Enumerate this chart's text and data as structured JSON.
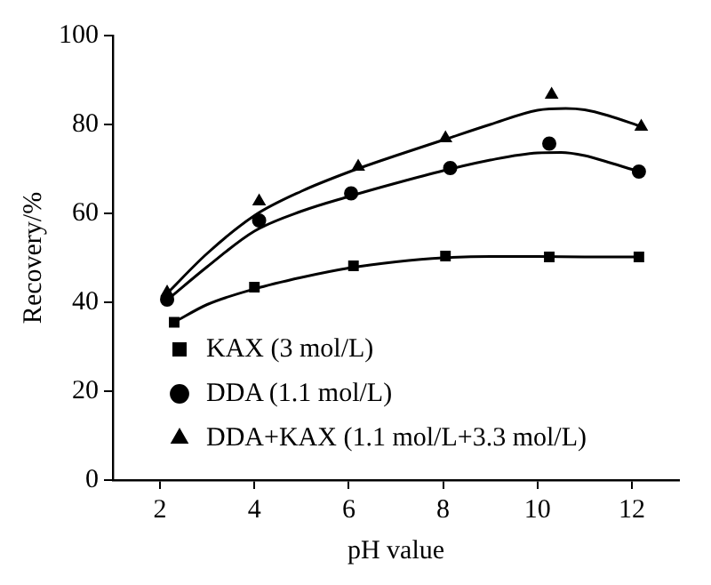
{
  "chart_data": {
    "type": "scatter",
    "xlabel": "pH value",
    "ylabel": "Recovery/%",
    "xlim": [
      1,
      13
    ],
    "xticks": [
      2,
      4,
      6,
      8,
      10,
      12
    ],
    "ylim": [
      0,
      100
    ],
    "yticks": [
      0,
      20,
      40,
      60,
      80,
      100
    ],
    "grid": false,
    "legend": "bottom left",
    "series": [
      {
        "name": "KAX (3 mol/L)",
        "color": "#000000",
        "marker": "square",
        "x": [
          2.3,
          4.0,
          6.1,
          8.05,
          10.25,
          12.15
        ],
        "values": [
          35.5,
          43.4,
          48.2,
          50.4,
          50.2,
          50.2
        ]
      },
      {
        "name": "DDA (1.1 mol/L)",
        "color": "#000000",
        "marker": "circle",
        "x": [
          2.15,
          4.1,
          6.05,
          8.15,
          10.25,
          12.15
        ],
        "values": [
          40.6,
          58.4,
          64.5,
          70.2,
          75.7,
          69.4
        ]
      },
      {
        "name": "DDA+KAX (1.1 mol/L+3.3 mol/L)",
        "color": "#000000",
        "marker": "triangle",
        "x": [
          2.15,
          4.1,
          6.2,
          8.05,
          10.3,
          12.2
        ],
        "values": [
          42.2,
          62.7,
          70.5,
          76.9,
          86.7,
          79.5
        ]
      },
      {
        "type": "line",
        "color": "#000000",
        "marker": "none",
        "x": [
          2.3,
          3,
          4,
          5,
          6,
          7,
          8,
          9,
          10,
          11,
          12.15
        ],
        "values": [
          35.5,
          39.5,
          43,
          45.6,
          47.7,
          49.1,
          50,
          50.3,
          50.3,
          50.2,
          50.2
        ]
      },
      {
        "type": "line",
        "color": "#000000",
        "marker": "none",
        "x": [
          2.15,
          3,
          4,
          5,
          6,
          7,
          8,
          9,
          10,
          10.5,
          11,
          11.5,
          12.15
        ],
        "values": [
          40.5,
          48,
          56,
          60.5,
          63.8,
          66.8,
          69.6,
          72,
          73.6,
          73.7,
          73,
          71.5,
          69.4
        ]
      },
      {
        "type": "line",
        "color": "#000000",
        "marker": "none",
        "x": [
          2.15,
          3,
          4,
          5,
          6,
          7,
          8,
          9,
          10,
          10.6,
          11,
          11.5,
          12.2
        ],
        "values": [
          42,
          51,
          59.5,
          65,
          69.3,
          73,
          76.5,
          80,
          83.2,
          83.6,
          83.3,
          82,
          79.5
        ]
      }
    ]
  }
}
